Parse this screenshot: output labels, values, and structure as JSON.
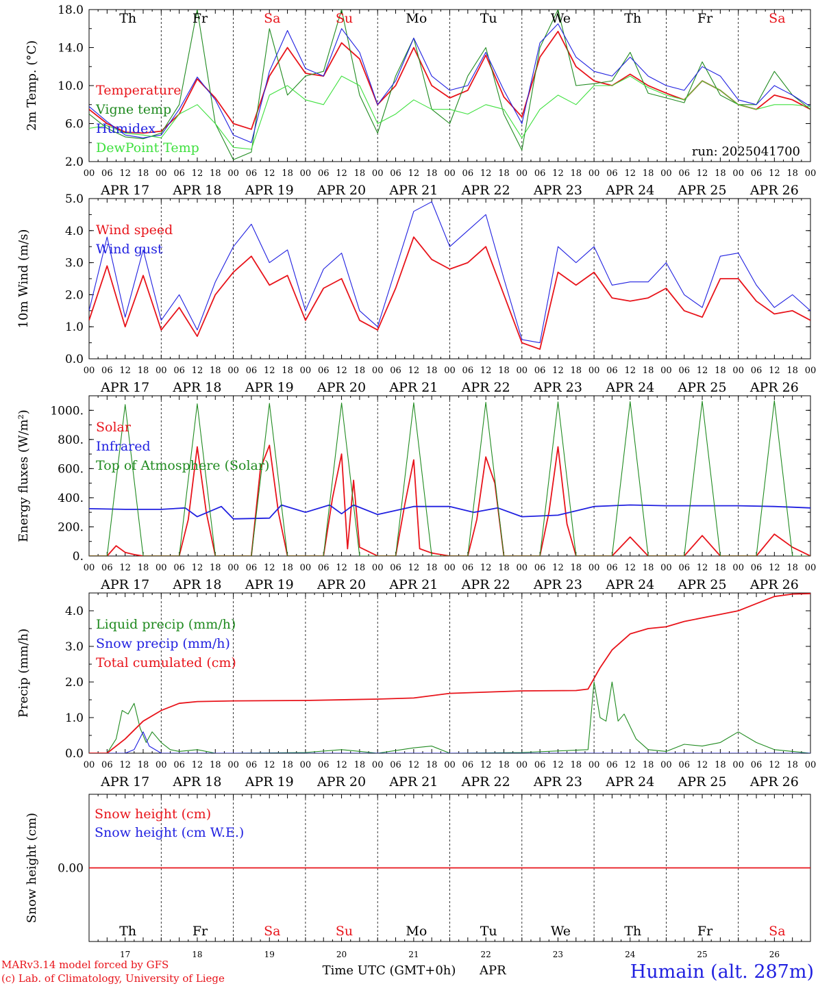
{
  "colors": {
    "red": "#e8131a",
    "green": "#1f8a1f",
    "blue": "#1f1fe0",
    "lightgreen": "#3ee03e",
    "axis": "#000000"
  },
  "days": {
    "abbr": [
      "Th",
      "Fr",
      "Sa",
      "Su",
      "Mo",
      "Tu",
      "We",
      "Th",
      "Fr",
      "Sa"
    ],
    "weekend": [
      false,
      false,
      true,
      true,
      false,
      false,
      false,
      false,
      false,
      true
    ],
    "dates": [
      "APR 17",
      "APR 18",
      "APR 19",
      "APR 20",
      "APR 21",
      "APR 22",
      "APR 23",
      "APR 24",
      "APR 25",
      "APR 26"
    ],
    "day_numbers": [
      "17",
      "18",
      "19",
      "20",
      "21",
      "22",
      "23",
      "24",
      "25",
      "26"
    ],
    "hour_ticks": [
      "00",
      "06",
      "12",
      "18"
    ],
    "final_tick": "00"
  },
  "run_label": "run: 2025041700",
  "xaxis_label": "Time UTC (GMT+0h)",
  "month_label": "APR",
  "footer": {
    "model": "MARv3.14 model forced by GFS",
    "copyright": "(c) Lab. of Climatology, University of Liege"
  },
  "station": "Humain (alt. 287m)",
  "chart_data": [
    {
      "type": "line",
      "ylabel": "2m Temp. (°C)",
      "ylim": [
        2.0,
        18.0
      ],
      "yticks": [
        "2.0",
        "6.0",
        "10.0",
        "14.0",
        "18.0"
      ],
      "x_unit": "hours since 2025-04-17 00 UTC",
      "series": [
        {
          "name": "Temperature",
          "color": "red",
          "x": [
            0,
            6,
            12,
            18,
            24,
            30,
            36,
            42,
            48,
            54,
            60,
            66,
            72,
            78,
            84,
            90,
            96,
            102,
            108,
            114,
            120,
            126,
            132,
            138,
            144,
            150,
            156,
            162,
            168,
            174,
            180,
            186,
            192,
            198,
            204,
            210,
            216,
            222,
            228,
            234,
            240
          ],
          "y": [
            7.5,
            6.0,
            5.1,
            5.0,
            5.2,
            7.0,
            10.7,
            8.7,
            6.0,
            5.4,
            11.0,
            14.0,
            11.3,
            11.0,
            14.5,
            12.8,
            8.0,
            10.0,
            14.0,
            10.0,
            8.7,
            9.5,
            13.2,
            8.8,
            6.7,
            13.0,
            15.7,
            12.0,
            10.5,
            10.0,
            11.2,
            10.0,
            9.2,
            8.5,
            10.5,
            9.5,
            8.0,
            7.5,
            9.0,
            8.5,
            7.5
          ]
        },
        {
          "name": "Vigne temp",
          "color": "green",
          "x": [
            0,
            6,
            12,
            18,
            24,
            30,
            36,
            42,
            48,
            54,
            60,
            66,
            72,
            78,
            84,
            90,
            96,
            102,
            108,
            114,
            120,
            126,
            132,
            138,
            144,
            150,
            156,
            162,
            168,
            174,
            180,
            186,
            192,
            198,
            204,
            210,
            216,
            222,
            228,
            234,
            240
          ],
          "y": [
            7.0,
            5.5,
            4.6,
            4.4,
            5.0,
            8.0,
            18.0,
            6.0,
            2.2,
            3.0,
            16.0,
            9.0,
            11.0,
            11.5,
            18.0,
            9.0,
            5.0,
            11.0,
            15.0,
            7.5,
            6.0,
            11.0,
            14.0,
            7.0,
            3.2,
            14.0,
            18.0,
            10.0,
            10.2,
            10.5,
            13.5,
            9.2,
            8.7,
            8.2,
            12.5,
            9.0,
            8.0,
            8.0,
            11.5,
            9.0,
            7.5
          ]
        },
        {
          "name": "Humidex",
          "color": "blue",
          "x": [
            0,
            6,
            12,
            18,
            24,
            30,
            36,
            42,
            48,
            54,
            60,
            66,
            72,
            78,
            84,
            90,
            96,
            102,
            108,
            114,
            120,
            126,
            132,
            138,
            144,
            150,
            156,
            162,
            168,
            174,
            180,
            186,
            192,
            198,
            204,
            210,
            216,
            222,
            228,
            234,
            240
          ],
          "y": [
            7.8,
            6.2,
            4.8,
            4.5,
            4.8,
            7.5,
            10.9,
            8.5,
            4.8,
            4.0,
            11.5,
            15.8,
            11.8,
            11.0,
            16.0,
            13.5,
            8.0,
            10.5,
            15.0,
            11.0,
            9.5,
            10.0,
            13.5,
            9.5,
            6.0,
            14.5,
            16.5,
            13.0,
            11.5,
            11.0,
            13.0,
            11.0,
            10.0,
            9.5,
            12.0,
            11.0,
            8.5,
            8.0,
            10.0,
            9.0,
            7.8
          ]
        },
        {
          "name": "DewPoint Temp",
          "color": "lightgreen",
          "x": [
            0,
            6,
            12,
            18,
            24,
            30,
            36,
            42,
            48,
            54,
            60,
            66,
            72,
            78,
            84,
            90,
            96,
            102,
            108,
            114,
            120,
            126,
            132,
            138,
            144,
            150,
            156,
            162,
            168,
            174,
            180,
            186,
            192,
            198,
            204,
            210,
            216,
            222,
            228,
            234,
            240
          ],
          "y": [
            5.5,
            5.8,
            5.0,
            4.8,
            4.5,
            7.0,
            8.0,
            6.0,
            3.5,
            3.3,
            9.0,
            10.0,
            8.5,
            8.0,
            11.0,
            10.0,
            6.0,
            7.0,
            8.5,
            7.5,
            7.5,
            7.0,
            8.0,
            7.5,
            4.5,
            7.5,
            9.0,
            8.0,
            10.0,
            10.0,
            11.0,
            9.8,
            9.0,
            8.5,
            10.5,
            9.5,
            8.0,
            7.5,
            8.0,
            8.0,
            7.8
          ]
        }
      ]
    },
    {
      "type": "line",
      "ylabel": "10m Wind (m/s)",
      "ylim": [
        0.0,
        5.0
      ],
      "yticks": [
        "0.0",
        "1.0",
        "2.0",
        "3.0",
        "4.0",
        "5.0"
      ],
      "x_unit": "hours since 2025-04-17 00 UTC",
      "series": [
        {
          "name": "Wind speed",
          "color": "red",
          "x": [
            0,
            6,
            12,
            18,
            24,
            30,
            36,
            42,
            48,
            54,
            60,
            66,
            72,
            78,
            84,
            90,
            96,
            102,
            108,
            114,
            120,
            126,
            132,
            138,
            144,
            150,
            156,
            162,
            168,
            174,
            180,
            186,
            192,
            198,
            204,
            210,
            216,
            222,
            228,
            234,
            240
          ],
          "y": [
            1.2,
            2.9,
            1.0,
            2.6,
            0.9,
            1.6,
            0.7,
            2.0,
            2.7,
            3.2,
            2.3,
            2.6,
            1.2,
            2.2,
            2.5,
            1.2,
            0.9,
            2.2,
            3.8,
            3.1,
            2.8,
            3.0,
            3.5,
            2.0,
            0.5,
            0.3,
            2.7,
            2.3,
            2.7,
            1.9,
            1.8,
            1.9,
            2.2,
            1.5,
            1.3,
            2.5,
            2.5,
            1.8,
            1.4,
            1.5,
            1.2
          ]
        },
        {
          "name": "Wind gust",
          "color": "blue",
          "x": [
            0,
            6,
            12,
            18,
            24,
            30,
            36,
            42,
            48,
            54,
            60,
            66,
            72,
            78,
            84,
            90,
            96,
            102,
            108,
            114,
            120,
            126,
            132,
            138,
            144,
            150,
            156,
            162,
            168,
            174,
            180,
            186,
            192,
            198,
            204,
            210,
            216,
            222,
            228,
            234,
            240
          ],
          "y": [
            1.5,
            3.8,
            1.3,
            3.4,
            1.2,
            2.0,
            0.9,
            2.4,
            3.5,
            4.2,
            3.0,
            3.4,
            1.5,
            2.8,
            3.3,
            1.5,
            1.0,
            2.8,
            4.6,
            4.9,
            3.5,
            4.0,
            4.5,
            2.5,
            0.6,
            0.5,
            3.5,
            3.0,
            3.5,
            2.3,
            2.4,
            2.4,
            3.0,
            2.0,
            1.6,
            3.2,
            3.3,
            2.3,
            1.6,
            2.0,
            1.5
          ]
        }
      ]
    },
    {
      "type": "line",
      "ylabel": "Energy fluxes (W/m²)",
      "ylim": [
        0,
        1100
      ],
      "yticks": [
        "0.",
        "200.",
        "400.",
        "600.",
        "800.",
        "1000."
      ],
      "x_unit": "hours since 2025-04-17 00 UTC",
      "series": [
        {
          "name": "Solar",
          "color": "red",
          "x": [
            0,
            6,
            9,
            12,
            15,
            18,
            24,
            30,
            33,
            36,
            39,
            42,
            48,
            54,
            57,
            60,
            63,
            66,
            72,
            78,
            81,
            84,
            86,
            88,
            90,
            96,
            102,
            105,
            108,
            110,
            114,
            120,
            126,
            129,
            132,
            135,
            138,
            144,
            150,
            153,
            156,
            159,
            162,
            168,
            174,
            180,
            186,
            192,
            198,
            204,
            210,
            216,
            222,
            228,
            234,
            240
          ],
          "y": [
            0,
            0,
            70,
            25,
            10,
            0,
            0,
            0,
            250,
            750,
            300,
            0,
            0,
            0,
            600,
            760,
            300,
            0,
            0,
            0,
            400,
            700,
            50,
            520,
            60,
            0,
            0,
            350,
            660,
            50,
            20,
            0,
            0,
            250,
            680,
            500,
            0,
            0,
            0,
            300,
            750,
            220,
            0,
            0,
            0,
            130,
            0,
            0,
            0,
            140,
            0,
            0,
            0,
            150,
            60,
            0
          ]
        },
        {
          "name": "Infrared",
          "color": "blue",
          "x": [
            0,
            12,
            24,
            32,
            36,
            44,
            48,
            60,
            64,
            72,
            80,
            84,
            88,
            96,
            108,
            120,
            128,
            136,
            144,
            156,
            168,
            180,
            192,
            204,
            216,
            228,
            234,
            240
          ],
          "y": [
            325,
            320,
            320,
            330,
            270,
            340,
            255,
            260,
            350,
            300,
            350,
            290,
            350,
            285,
            340,
            340,
            300,
            330,
            270,
            280,
            340,
            350,
            345,
            345,
            345,
            340,
            335,
            330
          ]
        },
        {
          "name": "Top of Atmosphere (Solar)",
          "color": "green",
          "x": [
            0,
            6,
            12,
            18,
            24,
            30,
            36,
            42,
            48,
            54,
            60,
            66,
            72,
            78,
            84,
            90,
            96,
            102,
            108,
            114,
            120,
            126,
            132,
            138,
            144,
            150,
            156,
            162,
            168,
            174,
            180,
            186,
            192,
            198,
            204,
            210,
            216,
            222,
            228,
            234,
            240
          ],
          "y": [
            0,
            0,
            1040,
            0,
            0,
            0,
            1045,
            0,
            0,
            0,
            1048,
            0,
            0,
            0,
            1050,
            0,
            0,
            0,
            1052,
            0,
            0,
            0,
            1055,
            0,
            0,
            0,
            1058,
            0,
            0,
            0,
            1060,
            0,
            0,
            0,
            1063,
            0,
            0,
            0,
            1066,
            0,
            0
          ]
        }
      ]
    },
    {
      "type": "line",
      "ylabel": "Precip (mm/h)",
      "ylim": [
        0.0,
        4.5
      ],
      "yticks": [
        "0.0",
        "1.0",
        "2.0",
        "3.0",
        "4.0"
      ],
      "x_unit": "hours since 2025-04-17 00 UTC",
      "series": [
        {
          "name": "Liquid precip (mm/h)",
          "color": "green",
          "x": [
            0,
            6,
            9,
            11,
            13,
            15,
            17,
            19,
            21,
            24,
            27,
            30,
            36,
            42,
            48,
            72,
            84,
            96,
            108,
            114,
            120,
            144,
            166,
            168,
            170,
            172,
            174,
            176,
            178,
            182,
            186,
            192,
            198,
            204,
            210,
            216,
            222,
            228,
            234,
            240
          ],
          "y": [
            0,
            0,
            0.4,
            1.2,
            1.1,
            1.4,
            0.7,
            0.3,
            0.6,
            0.3,
            0.1,
            0.05,
            0.1,
            0,
            0,
            0.02,
            0.1,
            0,
            0.15,
            0.2,
            0,
            0.02,
            0.1,
            2.0,
            1.0,
            0.9,
            2.0,
            0.9,
            1.1,
            0.4,
            0.1,
            0.05,
            0.25,
            0.2,
            0.3,
            0.6,
            0.3,
            0.1,
            0.05,
            0
          ]
        },
        {
          "name": "Snow precip (mm/h)",
          "color": "blue",
          "x": [
            0,
            12,
            15,
            18,
            20,
            24,
            240
          ],
          "y": [
            0,
            0,
            0.1,
            0.6,
            0.2,
            0,
            0
          ]
        },
        {
          "name": "Total cumulated (cm)",
          "color": "red",
          "x": [
            0,
            6,
            12,
            18,
            24,
            30,
            36,
            48,
            72,
            96,
            108,
            120,
            144,
            162,
            166,
            170,
            174,
            180,
            186,
            192,
            198,
            204,
            210,
            216,
            222,
            228,
            234,
            240
          ],
          "y": [
            0,
            0,
            0.4,
            0.9,
            1.2,
            1.4,
            1.45,
            1.47,
            1.48,
            1.52,
            1.55,
            1.68,
            1.75,
            1.76,
            1.8,
            2.4,
            2.9,
            3.35,
            3.5,
            3.55,
            3.7,
            3.8,
            3.9,
            4.0,
            4.2,
            4.4,
            4.47,
            4.48
          ]
        }
      ]
    },
    {
      "type": "line",
      "ylabel": "Snow height (cm)",
      "ylim": [
        -1.0,
        1.0
      ],
      "yticks": [
        "0.00"
      ],
      "x_unit": "hours since 2025-04-17 00 UTC",
      "series": [
        {
          "name": "Snow height (cm)",
          "color": "red",
          "x": [
            0,
            240
          ],
          "y": [
            0,
            0
          ]
        },
        {
          "name": "Snow height (cm W.E.)",
          "color": "blue",
          "x": [],
          "y": []
        }
      ]
    }
  ]
}
